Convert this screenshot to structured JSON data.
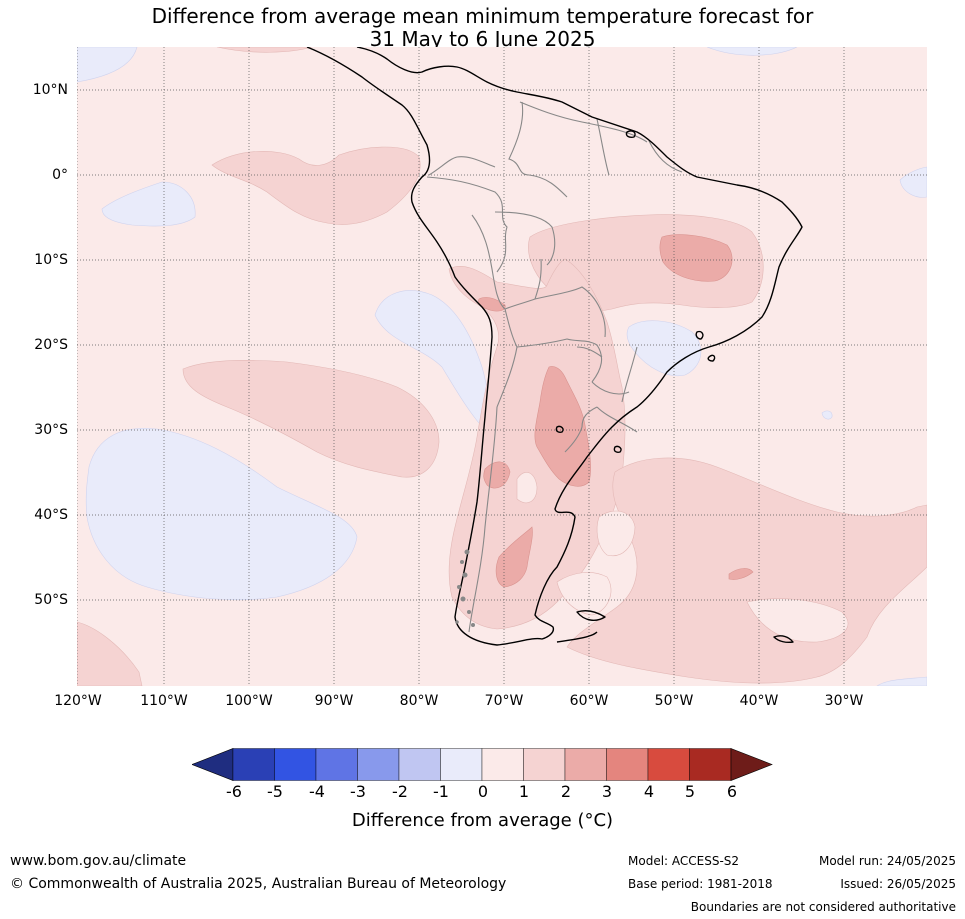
{
  "title": {
    "line1": "Difference from average mean minimum temperature forecast for",
    "line2": "31 May to 6 June 2025"
  },
  "map": {
    "latitude_labels": [
      "10°N",
      "0°",
      "10°S",
      "20°S",
      "30°S",
      "40°S",
      "50°S"
    ],
    "longitude_labels": [
      "120°W",
      "110°W",
      "100°W",
      "90°W",
      "80°W",
      "70°W",
      "60°W",
      "50°W",
      "40°W",
      "30°W"
    ]
  },
  "legend": {
    "ticks": [
      "-6",
      "-5",
      "-4",
      "-3",
      "-2",
      "-1",
      "0",
      "1",
      "2",
      "3",
      "4",
      "5",
      "6"
    ],
    "title": "Difference from average (°C)",
    "colors": [
      "#1f2d80",
      "#2a40b5",
      "#3254e3",
      "#5f74e5",
      "#8899ec",
      "#c0c6f2",
      "#e9ebfa",
      "#fbeae9",
      "#f5d3d2",
      "#ebaba8",
      "#e4857e",
      "#d84b3e",
      "#a92a22",
      "#6e1c19"
    ]
  },
  "footer": {
    "website": "www.bom.gov.au/climate",
    "copyright": "© Commonwealth of Australia 2025, Australian Bureau of Meteorology",
    "model": "Model: ACCESS-S2",
    "base_period": "Base period: 1981-2018",
    "model_run": "Model run: 24/05/2025",
    "issued": "Issued: 26/05/2025",
    "disclaimer": "Boundaries are not considered authoritative"
  }
}
